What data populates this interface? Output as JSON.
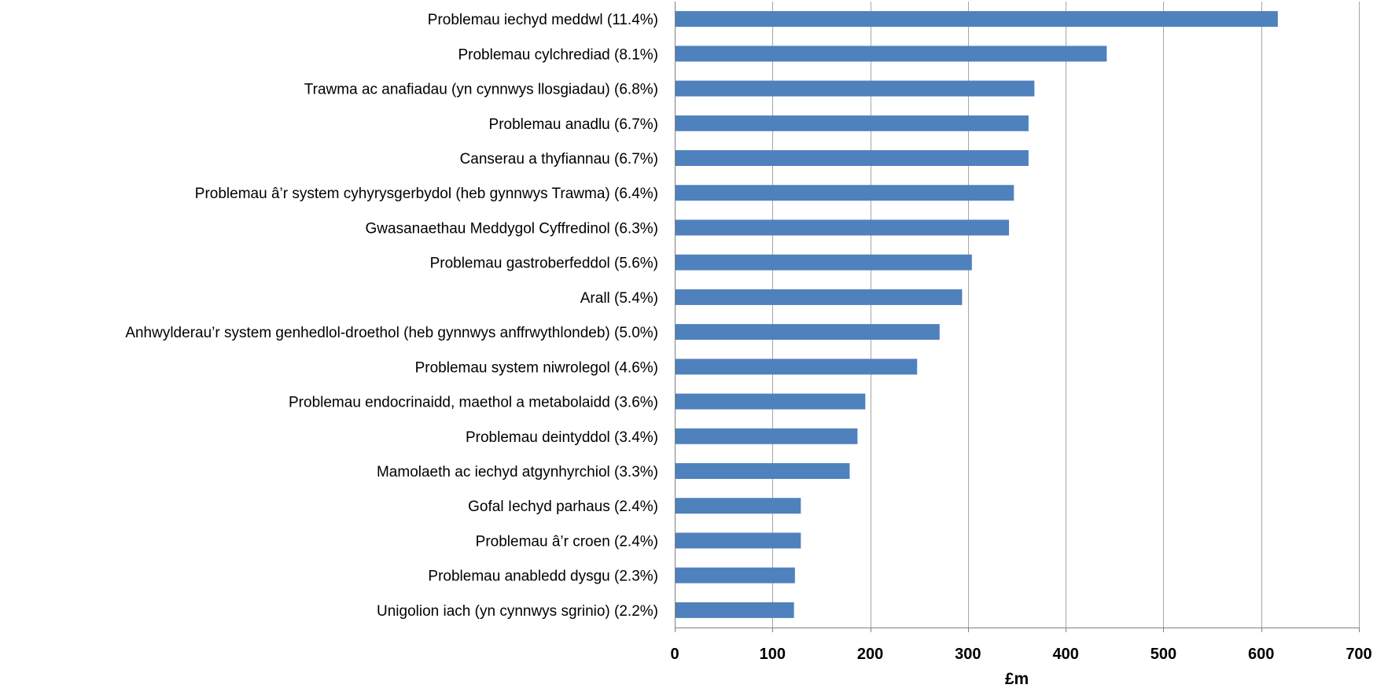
{
  "chart_data": {
    "type": "bar",
    "orientation": "horizontal",
    "categories": [
      "Problemau iechyd meddwl (11.4%)",
      "Problemau cylchrediad (8.1%)",
      "Trawma ac anafiadau (yn cynnwys llosgiadau) (6.8%)",
      "Problemau anadlu (6.7%)",
      "Canserau a thyfiannau (6.7%)",
      "Problemau â’r system cyhyrysgerbydol (heb gynnwys Trawma) (6.4%)",
      "Gwasanaethau Meddygol Cyffredinol (6.3%)",
      "Problemau gastroberfeddol (5.6%)",
      "Arall (5.4%)",
      "Anhwylderau’r system genhedlol-droethol (heb gynnwys anffrwythlondeb) (5.0%)",
      "Problemau system niwrolegol (4.6%)",
      "Problemau endocrinaidd, maethol a metabolaidd (3.6%)",
      "Problemau deintyddol (3.4%)",
      "Mamolaeth ac iechyd atgynhyrchiol (3.3%)",
      "Gofal Iechyd parhaus (2.4%)",
      "Problemau â’r croen (2.4%)",
      "Problemau anabledd dysgu (2.3%)",
      "Unigolion iach (yn cynnwys sgrinio) (2.2%)"
    ],
    "values": [
      617,
      442,
      368,
      362,
      362,
      347,
      342,
      304,
      294,
      271,
      248,
      195,
      187,
      179,
      129,
      129,
      123,
      122
    ],
    "xlabel": "£m",
    "ylabel": "",
    "xlim": [
      0,
      700
    ],
    "x_ticks": [
      "0",
      "100",
      "200",
      "300",
      "400",
      "500",
      "600",
      "700"
    ],
    "grid": "vertical",
    "legend": "none",
    "bar_color": "#4F81BD",
    "grid_color": "#A6A6A6",
    "axis_color": "#808080"
  }
}
